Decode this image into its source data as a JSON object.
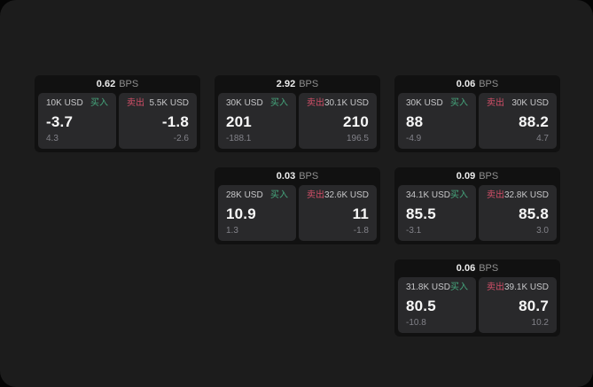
{
  "colors": {
    "buy_green": "#46a87e",
    "sell_red": "#d24f68",
    "window_bg": "#1c1c1c",
    "card_bg": "#111111",
    "panel_bg": "#29292b"
  },
  "cards": [
    {
      "bps": "0.62",
      "unit": "BPS",
      "buy": {
        "amount": "10K USD",
        "label": "买入",
        "value": "-3.7",
        "delta": "4.3"
      },
      "sell": {
        "label": "卖出",
        "amount": "5.5K USD",
        "value": "-1.8",
        "delta": "-2.6"
      }
    },
    {
      "bps": "2.92",
      "unit": "BPS",
      "buy": {
        "amount": "30K USD",
        "label": "买入",
        "value": "201",
        "delta": "-188.1"
      },
      "sell": {
        "label": "卖出",
        "amount": "30.1K USD",
        "value": "210",
        "delta": "196.5"
      }
    },
    {
      "bps": "0.06",
      "unit": "BPS",
      "buy": {
        "amount": "30K USD",
        "label": "买入",
        "value": "88",
        "delta": "-4.9"
      },
      "sell": {
        "label": "卖出",
        "amount": "30K USD",
        "value": "88.2",
        "delta": "4.7"
      }
    },
    {
      "bps": "0.03",
      "unit": "BPS",
      "buy": {
        "amount": "28K USD",
        "label": "买入",
        "value": "10.9",
        "delta": "1.3"
      },
      "sell": {
        "label": "卖出",
        "amount": "32.6K USD",
        "value": "11",
        "delta": "-1.8"
      }
    },
    {
      "bps": "0.09",
      "unit": "BPS",
      "buy": {
        "amount": "34.1K USD",
        "label": "买入",
        "value": "85.5",
        "delta": "-3.1"
      },
      "sell": {
        "label": "卖出",
        "amount": "32.8K USD",
        "value": "85.8",
        "delta": "3.0"
      }
    },
    {
      "bps": "0.06",
      "unit": "BPS",
      "buy": {
        "amount": "31.8K USD",
        "label": "买入",
        "value": "80.5",
        "delta": "-10.8"
      },
      "sell": {
        "label": "卖出",
        "amount": "39.1K USD",
        "value": "80.7",
        "delta": "10.2"
      }
    }
  ]
}
